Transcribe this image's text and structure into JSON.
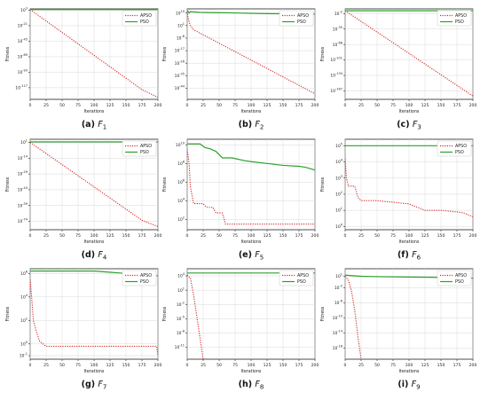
{
  "chart_data": [
    {
      "type": "line",
      "caption_tag": "(a)",
      "caption_letter": "F",
      "caption_sub": "1",
      "xlabel": "Iterations",
      "ylabel": "Fitness",
      "yscale": "log",
      "ylim_exp": [
        -135,
        5
      ],
      "grid": true,
      "legend": "top-right",
      "xticks": [
        0,
        25,
        50,
        75,
        100,
        125,
        150,
        175,
        200
      ],
      "yticks": [
        {
          "exp": 3,
          "label": "10^3"
        },
        {
          "exp": -21,
          "label": "10^-21"
        },
        {
          "exp": -45,
          "label": "10^-45"
        },
        {
          "exp": -69,
          "label": "10^-69"
        },
        {
          "exp": -93,
          "label": "10^-93"
        },
        {
          "exp": -117,
          "label": "10^-117"
        }
      ],
      "series": [
        {
          "name": "APSO",
          "style": "dotted",
          "color": "#d62728",
          "x": [
            0,
            175,
            200
          ],
          "y_exp": [
            4,
            -120,
            -132
          ]
        },
        {
          "name": "PSO",
          "style": "solid",
          "color": "#2ca02c",
          "x": [
            0,
            200
          ],
          "y_exp": [
            4,
            4
          ]
        }
      ]
    },
    {
      "type": "line",
      "caption_tag": "(b)",
      "caption_letter": "F",
      "caption_sub": "2",
      "xlabel": "Iterations",
      "ylabel": "Fitness",
      "yscale": "log",
      "ylim_exp": [
        -52,
        13
      ],
      "grid": true,
      "legend": "top-right",
      "xticks": [
        0,
        25,
        50,
        75,
        100,
        125,
        150,
        175,
        200
      ],
      "yticks": [
        {
          "exp": 10,
          "label": "10^10"
        },
        {
          "exp": 1,
          "label": "10^1"
        },
        {
          "exp": -8,
          "label": "10^-8"
        },
        {
          "exp": -17,
          "label": "10^-17"
        },
        {
          "exp": -26,
          "label": "10^-26"
        },
        {
          "exp": -35,
          "label": "10^-35"
        },
        {
          "exp": -44,
          "label": "10^-44"
        }
      ],
      "series": [
        {
          "name": "APSO",
          "style": "dotted",
          "color": "#d62728",
          "x": [
            0,
            2,
            5,
            10,
            200
          ],
          "y_exp": [
            11,
            5,
            1,
            -2,
            -48
          ]
        },
        {
          "name": "PSO",
          "style": "solid",
          "color": "#2ca02c",
          "x": [
            0,
            3,
            5,
            20,
            40,
            60,
            80,
            100,
            125,
            150,
            175,
            200
          ],
          "y_exp": [
            12,
            10,
            11,
            10.5,
            10.3,
            10.2,
            10,
            9.8,
            9.6,
            9.5,
            9.3,
            9.2
          ]
        }
      ]
    },
    {
      "type": "line",
      "caption_tag": "(c)",
      "caption_letter": "F",
      "caption_sub": "3",
      "xlabel": "Iterations",
      "ylabel": "Fitness",
      "yscale": "log",
      "ylim_exp": [
        -185,
        8
      ],
      "grid": true,
      "legend": "top-right",
      "xticks": [
        0,
        25,
        50,
        75,
        100,
        125,
        150,
        175,
        200
      ],
      "yticks": [
        {
          "exp": -2,
          "label": "10^-2"
        },
        {
          "exp": -35,
          "label": "10^-35"
        },
        {
          "exp": -68,
          "label": "10^-68"
        },
        {
          "exp": -101,
          "label": "10^-101"
        },
        {
          "exp": -134,
          "label": "10^-134"
        },
        {
          "exp": -167,
          "label": "10^-167"
        }
      ],
      "series": [
        {
          "name": "APSO",
          "style": "dotted",
          "color": "#d62728",
          "x": [
            0,
            200
          ],
          "y_exp": [
            4,
            -178
          ]
        },
        {
          "name": "PSO",
          "style": "solid",
          "color": "#2ca02c",
          "x": [
            0,
            200
          ],
          "y_exp": [
            4,
            4
          ]
        }
      ]
    },
    {
      "type": "line",
      "caption_tag": "(d)",
      "caption_letter": "F",
      "caption_sub": "4",
      "xlabel": "Iterations",
      "ylabel": "Fitness",
      "yscale": "log",
      "ylim_exp": [
        -82,
        4
      ],
      "grid": true,
      "legend": "top-right",
      "xticks": [
        0,
        25,
        50,
        75,
        100,
        125,
        150,
        175,
        200
      ],
      "yticks": [
        {
          "exp": 1,
          "label": "10^1"
        },
        {
          "exp": -14,
          "label": "10^-14"
        },
        {
          "exp": -29,
          "label": "10^-29"
        },
        {
          "exp": -44,
          "label": "10^-44"
        },
        {
          "exp": -59,
          "label": "10^-59"
        },
        {
          "exp": -74,
          "label": "10^-74"
        }
      ],
      "series": [
        {
          "name": "APSO",
          "style": "dotted",
          "color": "#d62728",
          "x": [
            0,
            175,
            200
          ],
          "y_exp": [
            1,
            -73,
            -79
          ]
        },
        {
          "name": "PSO",
          "style": "solid",
          "color": "#2ca02c",
          "x": [
            0,
            200
          ],
          "y_exp": [
            1.5,
            1.5
          ]
        }
      ]
    },
    {
      "type": "line",
      "caption_tag": "(e)",
      "caption_letter": "F",
      "caption_sub": "5",
      "xlabel": "Iterations",
      "ylabel": "Fitness",
      "yscale": "log",
      "ylim_exp": [
        0.9,
        10.6
      ],
      "grid": true,
      "legend": "none",
      "xticks": [
        0,
        25,
        50,
        75,
        100,
        125,
        150,
        175,
        200
      ],
      "yticks": [
        {
          "exp": 10,
          "label": "10^10"
        },
        {
          "exp": 8,
          "label": "10^8"
        },
        {
          "exp": 6,
          "label": "10^6"
        },
        {
          "exp": 4,
          "label": "10^4"
        },
        {
          "exp": 2,
          "label": "10^2"
        }
      ],
      "series": [
        {
          "name": "APSO",
          "style": "dotted",
          "color": "#d62728",
          "x": [
            0,
            3,
            5,
            10,
            25,
            30,
            40,
            45,
            55,
            60,
            200
          ],
          "y_exp": [
            9.5,
            8,
            5.5,
            3.7,
            3.7,
            3.3,
            3.3,
            2.7,
            2.7,
            1.5,
            1.5
          ]
        },
        {
          "name": "PSO",
          "style": "solid",
          "color": "#2ca02c",
          "x": [
            0,
            20,
            28,
            35,
            45,
            55,
            70,
            90,
            100,
            125,
            150,
            175,
            185,
            195,
            200
          ],
          "y_exp": [
            10.1,
            10.1,
            9.7,
            9.6,
            9.3,
            8.6,
            8.6,
            8.3,
            8.2,
            8,
            7.8,
            7.7,
            7.6,
            7.4,
            7.3
          ]
        }
      ]
    },
    {
      "type": "line",
      "caption_tag": "(f)",
      "caption_letter": "F",
      "caption_sub": "6",
      "xlabel": "Iterations",
      "ylabel": "Fitness",
      "yscale": "log",
      "ylim_exp": [
        -0.2,
        5.4
      ],
      "grid": true,
      "legend": "top-right",
      "xticks": [
        0,
        25,
        50,
        75,
        100,
        125,
        150,
        175,
        200
      ],
      "yticks": [
        {
          "exp": 5,
          "label": "10^5"
        },
        {
          "exp": 4,
          "label": "10^4"
        },
        {
          "exp": 3,
          "label": "10^3"
        },
        {
          "exp": 2,
          "label": "10^2"
        },
        {
          "exp": 1,
          "label": "10^1"
        },
        {
          "exp": 0,
          "label": "10^0"
        }
      ],
      "series": [
        {
          "name": "APSO",
          "style": "dotted",
          "color": "#d62728",
          "x": [
            0,
            2,
            5,
            15,
            20,
            25,
            50,
            75,
            100,
            125,
            150,
            175,
            185,
            200
          ],
          "y_exp": [
            4.2,
            3,
            2.5,
            2.5,
            1.8,
            1.6,
            1.6,
            1.5,
            1.4,
            1,
            1,
            0.9,
            0.85,
            0.6
          ]
        },
        {
          "name": "PSO",
          "style": "solid",
          "color": "#2ca02c",
          "x": [
            0,
            200
          ],
          "y_exp": [
            5,
            5
          ]
        }
      ]
    },
    {
      "type": "line",
      "caption_tag": "(g)",
      "caption_letter": "F",
      "caption_sub": "7",
      "xlabel": "Iterations",
      "ylabel": "Fitness",
      "yscale": "log",
      "ylim_exp": [
        -1.3,
        6.4
      ],
      "grid": true,
      "legend": "top-right",
      "xticks": [
        0,
        25,
        50,
        75,
        100,
        125,
        150,
        175,
        200
      ],
      "yticks": [
        {
          "exp": 6,
          "label": "10^6"
        },
        {
          "exp": 4,
          "label": "10^4"
        },
        {
          "exp": 2,
          "label": "10^2"
        },
        {
          "exp": 0,
          "label": "10^0"
        },
        {
          "exp": -1,
          "label": "10^-1"
        }
      ],
      "series": [
        {
          "name": "APSO",
          "style": "dotted",
          "color": "#d62728",
          "x": [
            0,
            3,
            5,
            10,
            15,
            25,
            50,
            100,
            150,
            198,
            200
          ],
          "y_exp": [
            5.5,
            3.5,
            2,
            1,
            0.2,
            -0.2,
            -0.2,
            -0.2,
            -0.2,
            -0.2,
            -1
          ]
        },
        {
          "name": "PSO",
          "style": "solid",
          "color": "#2ca02c",
          "x": [
            0,
            100,
            150,
            175,
            200
          ],
          "y_exp": [
            6.2,
            6.2,
            6,
            5.8,
            5.8
          ]
        }
      ]
    },
    {
      "type": "line",
      "caption_tag": "(h)",
      "caption_letter": "F",
      "caption_sub": "8",
      "xlabel": "Iterations",
      "ylabel": "Fitness",
      "yscale": "log",
      "ylim_exp": [
        -13.5,
        5.5
      ],
      "grid": true,
      "legend": "top-right",
      "xticks": [
        0,
        25,
        50,
        75,
        100,
        125,
        150,
        175,
        200
      ],
      "yticks": [
        {
          "exp": 4,
          "label": "10^4"
        },
        {
          "exp": 1,
          "label": "10^1"
        },
        {
          "exp": -2,
          "label": "10^-2"
        },
        {
          "exp": -5,
          "label": "10^-5"
        },
        {
          "exp": -8,
          "label": "10^-8"
        },
        {
          "exp": -11,
          "label": "10^-11"
        }
      ],
      "series": [
        {
          "name": "APSO",
          "style": "dotted",
          "color": "#d62728",
          "x": [
            0,
            5,
            10,
            25
          ],
          "y_exp": [
            4.2,
            3.5,
            0,
            -13.5
          ]
        },
        {
          "name": "PSO",
          "style": "solid",
          "color": "#2ca02c",
          "x": [
            0,
            200
          ],
          "y_exp": [
            4.6,
            4.6
          ]
        }
      ]
    },
    {
      "type": "line",
      "caption_tag": "(i)",
      "caption_letter": "F",
      "caption_sub": "9",
      "xlabel": "Iterations",
      "ylabel": "Fitness",
      "yscale": "log",
      "ylim_exp": [
        -21,
        3
      ],
      "grid": true,
      "legend": "top-right",
      "xticks": [
        0,
        25,
        50,
        75,
        100,
        125,
        150,
        175,
        200
      ],
      "yticks": [
        {
          "exp": 1,
          "label": "10^1"
        },
        {
          "exp": -2,
          "label": "10^-2"
        },
        {
          "exp": -6,
          "label": "10^-6"
        },
        {
          "exp": -10,
          "label": "10^-10"
        },
        {
          "exp": -14,
          "label": "10^-14"
        },
        {
          "exp": -18,
          "label": "10^-18"
        }
      ],
      "series": [
        {
          "name": "APSO",
          "style": "dotted",
          "color": "#d62728",
          "x": [
            0,
            5,
            10,
            15,
            20,
            25
          ],
          "y_exp": [
            1,
            0,
            -3,
            -8,
            -15,
            -21
          ]
        },
        {
          "name": "PSO",
          "style": "solid",
          "color": "#2ca02c",
          "x": [
            0,
            25,
            50,
            100,
            150,
            200
          ],
          "y_exp": [
            1.3,
            1,
            0.9,
            0.8,
            0.7,
            0.5
          ]
        }
      ]
    }
  ]
}
